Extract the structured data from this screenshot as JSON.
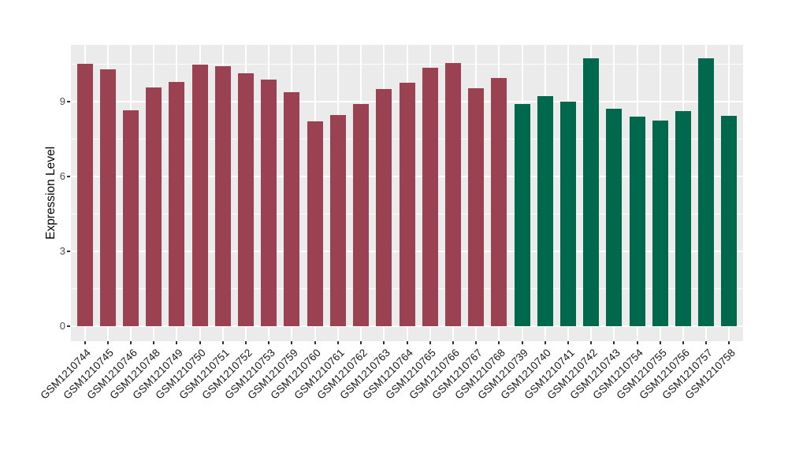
{
  "figure": {
    "background": "#FFFFFF",
    "panel_background": "#EBEBEB",
    "gridline_color": "#FFFFFF",
    "axis_tick_text_color": "#4D4D4D",
    "x_label_text_color": "#1A1A1A",
    "axis_title_color": "#000000"
  },
  "chart_data": {
    "type": "bar",
    "title": "",
    "xlabel": "",
    "ylabel": "Expression Level",
    "legend": "none",
    "grid": "on",
    "x_tick_rotation_deg": 45,
    "ylim": [
      -0.6,
      11.26
    ],
    "y_ticks": [
      0,
      3,
      6,
      9
    ],
    "y_minor_gridlines": [
      1.5,
      4.5,
      7.5,
      10.5
    ],
    "group_colors": [
      "#9B4252",
      "#00684C"
    ],
    "categories": [
      "GSM1210744",
      "GSM1210745",
      "GSM1210746",
      "GSM1210748",
      "GSM1210749",
      "GSM1210750",
      "GSM1210751",
      "GSM1210752",
      "GSM1210753",
      "GSM1210759",
      "GSM1210760",
      "GSM1210761",
      "GSM1210762",
      "GSM1210763",
      "GSM1210764",
      "GSM1210765",
      "GSM1210766",
      "GSM1210767",
      "GSM1210768",
      "GSM1210739",
      "GSM1210740",
      "GSM1210741",
      "GSM1210742",
      "GSM1210743",
      "GSM1210754",
      "GSM1210755",
      "GSM1210756",
      "GSM1210757",
      "GSM1210758"
    ],
    "values": [
      10.51,
      10.28,
      8.64,
      9.55,
      9.79,
      10.48,
      10.4,
      10.11,
      9.88,
      9.36,
      8.2,
      8.45,
      8.9,
      9.49,
      9.74,
      10.34,
      10.53,
      9.52,
      9.94,
      8.9,
      9.2,
      9.0,
      10.72,
      8.72,
      8.4,
      8.24,
      8.61,
      10.72,
      8.43
    ],
    "bar_group_index": [
      0,
      0,
      0,
      0,
      0,
      0,
      0,
      0,
      0,
      0,
      0,
      0,
      0,
      0,
      0,
      0,
      0,
      0,
      0,
      1,
      1,
      1,
      1,
      1,
      1,
      1,
      1,
      1,
      1
    ]
  }
}
